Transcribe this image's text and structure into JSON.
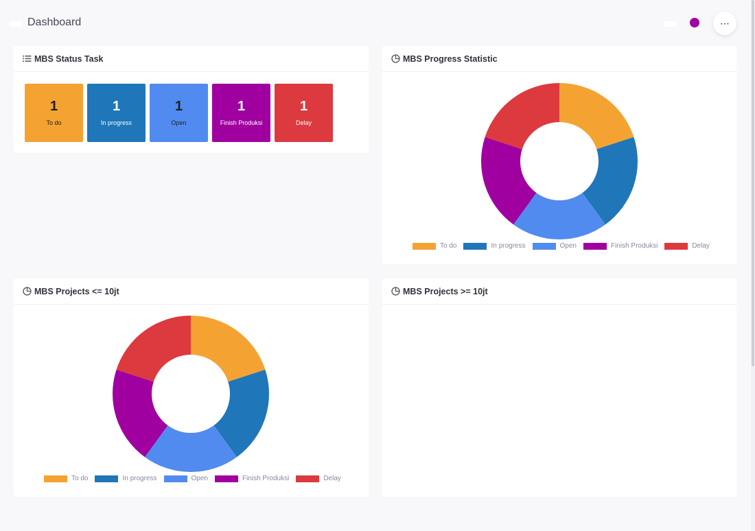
{
  "header": {
    "title": "Dashboard",
    "menu_glyph": "⋯"
  },
  "status_card": {
    "title": "MBS Status Task",
    "tiles": [
      {
        "count": "1",
        "label": "To do",
        "bg": "#f4a333",
        "fg": "#1f1f1f"
      },
      {
        "count": "1",
        "label": "In progress",
        "bg": "#1f76b9",
        "fg": "#ffffff"
      },
      {
        "count": "1",
        "label": "Open",
        "bg": "#518bef",
        "fg": "#1f1f1f"
      },
      {
        "count": "1",
        "label": "Finish Produksi",
        "bg": "#a000a0",
        "fg": "#ffffff"
      },
      {
        "count": "1",
        "label": "Delay",
        "bg": "#dc3a3e",
        "fg": "#ffffff"
      }
    ]
  },
  "progress_card": {
    "title": "MBS Progress Statistic"
  },
  "small_projects_card": {
    "title": "MBS Projects <= 10jt"
  },
  "large_projects_card": {
    "title": "MBS Projects >= 10jt"
  },
  "chart_data": [
    {
      "type": "pie",
      "variant": "doughnut",
      "categories": [
        "To do",
        "In progress",
        "Open",
        "Finish Produksi",
        "Delay"
      ],
      "values": [
        1,
        1,
        1,
        1,
        1
      ],
      "colors": [
        "#f4a333",
        "#1f76b9",
        "#518bef",
        "#a000a0",
        "#dc3a3e"
      ],
      "legend": "bottom"
    },
    {
      "type": "pie",
      "variant": "doughnut",
      "categories": [
        "To do",
        "In progress",
        "Open",
        "Finish Produksi",
        "Delay"
      ],
      "values": [
        1,
        1,
        1,
        1,
        1
      ],
      "colors": [
        "#f4a333",
        "#1f76b9",
        "#518bef",
        "#a000a0",
        "#dc3a3e"
      ],
      "legend": "bottom"
    }
  ]
}
